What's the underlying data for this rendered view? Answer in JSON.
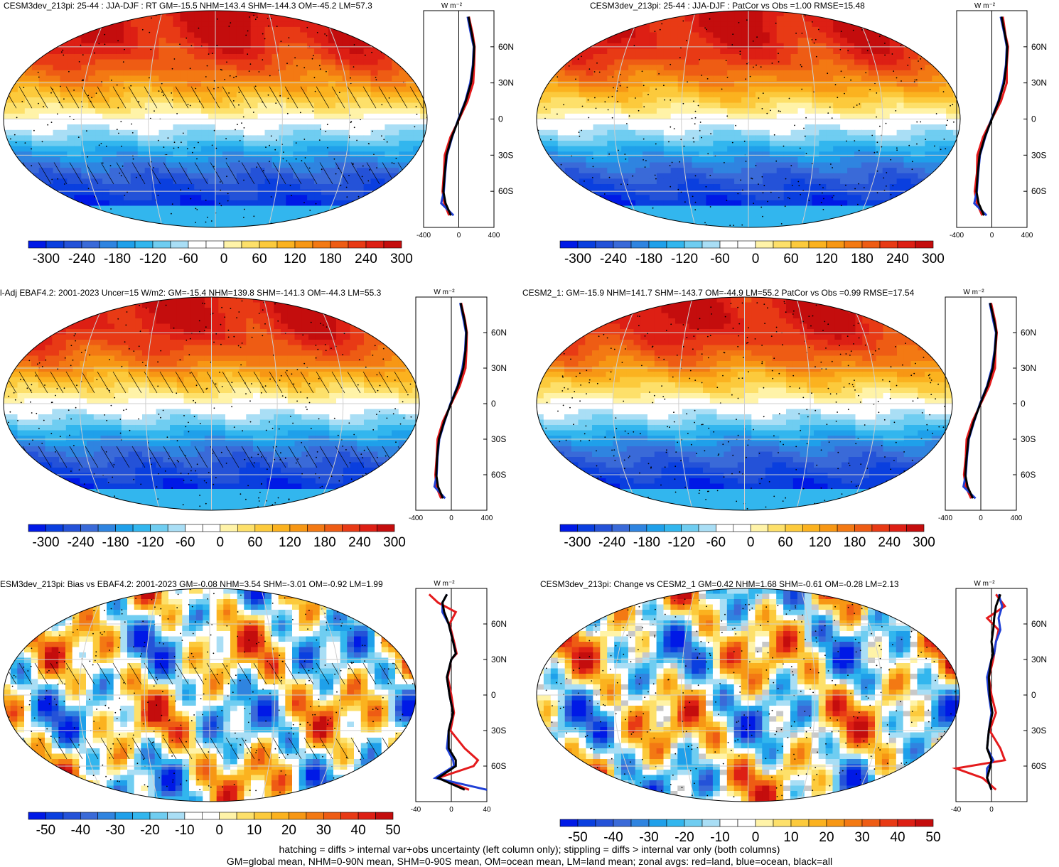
{
  "colors": {
    "ocean_land_line": "#000000",
    "grid_line": "#cfcfcf",
    "zonal_land": "#e41a1c",
    "zonal_ocean": "#1f3fd6",
    "zonal_all": "#000000",
    "missing": "#c8c8c8"
  },
  "palette": [
    "#0019e6",
    "#0a3fdf",
    "#2452d8",
    "#3a6ad8",
    "#2f84e0",
    "#1fa0ea",
    "#32b6ee",
    "#6fcdf1",
    "#a9def5",
    "#ffffff",
    "#ffffff",
    "#fff3a8",
    "#fde06a",
    "#fcca3c",
    "#fbb21f",
    "#f79714",
    "#f37913",
    "#ee5c14",
    "#e83a15",
    "#dd1f14",
    "#c40d0d"
  ],
  "panels": [
    {
      "title": "CESM3dev_213pi: 25-44 : JJA-DJF : RT GM=-15.5 NHM=143.4 SHM=-144.3 OM=-45.2 LM=57.3",
      "kind": "field",
      "hatching": true,
      "colorbar_labels": [
        "-300",
        "-240",
        "-180",
        "-120",
        "-60",
        "0",
        "60",
        "120",
        "180",
        "240",
        "300"
      ],
      "profile_ticks": [
        "-400",
        "0",
        "400"
      ],
      "lat_labels": [
        "60N",
        "30N",
        "0",
        "30S",
        "60S"
      ],
      "units": "W m⁻²"
    },
    {
      "title": "CESM3dev_213pi: 25-44 : JJA-DJF : PatCor vs Obs =1.00 RMSE=15.48",
      "kind": "field",
      "hatching": false,
      "colorbar_labels": [
        "-300",
        "-240",
        "-180",
        "-120",
        "-60",
        "0",
        "60",
        "120",
        "180",
        "240",
        "300"
      ],
      "profile_ticks": [
        "-400",
        "0",
        "400"
      ],
      "lat_labels": [
        "60N",
        "30N",
        "0",
        "30S",
        "60S"
      ],
      "units": "W m⁻²"
    },
    {
      "title": "l-Adj EBAF4.2: 2001-2023 Uncer=15 W/m2: GM=-15.4 NHM=139.8 SHM=-141.3 OM=-44.3 LM=55.3",
      "kind": "field",
      "hatching": true,
      "colorbar_labels": [
        "-300",
        "-240",
        "-180",
        "-120",
        "-60",
        "0",
        "60",
        "120",
        "180",
        "240",
        "300"
      ],
      "profile_ticks": [
        "-400",
        "0",
        "400"
      ],
      "lat_labels": [
        "60N",
        "30N",
        "0",
        "30S",
        "60S"
      ],
      "units": "W m⁻²"
    },
    {
      "title": "CESM2_1: GM=-15.9 NHM=141.7 SHM=-143.7 OM=-44.9 LM=55.2 PatCor vs Obs =0.99 RMSE=17.54",
      "kind": "field",
      "hatching": false,
      "colorbar_labels": [
        "-300",
        "-240",
        "-180",
        "-120",
        "-60",
        "0",
        "60",
        "120",
        "180",
        "240",
        "300"
      ],
      "profile_ticks": [
        "-400",
        "0",
        "400"
      ],
      "lat_labels": [
        "60N",
        "30N",
        "0",
        "30S",
        "60S"
      ],
      "units": "W m⁻²"
    },
    {
      "title": "ESM3dev_213pi: Bias vs EBAF4.2: 2001-2023 GM=-0.08 NHM=3.54 SHM=-3.01 OM=-0.92 LM=1.99",
      "kind": "diff",
      "hatching": true,
      "colorbar_labels": [
        "-50",
        "-40",
        "-30",
        "-20",
        "-10",
        "0",
        "10",
        "20",
        "30",
        "40",
        "50"
      ],
      "profile_ticks": [
        "-40",
        "0",
        "40"
      ],
      "lat_labels": [
        "60N",
        "30N",
        "0",
        "30S",
        "60S"
      ],
      "units": "W m⁻²"
    },
    {
      "title": "CESM3dev_213pi: Change vs CESM2_1 GM=0.42 NHM=1.68 SHM=-0.61 OM=-0.28 LM=2.13",
      "kind": "diff",
      "hatching": false,
      "colorbar_labels": [
        "-50",
        "-40",
        "-30",
        "-20",
        "-10",
        "0",
        "10",
        "20",
        "30",
        "40",
        "50"
      ],
      "profile_ticks": [
        "-40",
        "0"
      ],
      "lat_labels": [
        "60N",
        "30N",
        "0",
        "30S",
        "60S"
      ],
      "units": "W m⁻²"
    }
  ],
  "chart_data": [
    {
      "type": "heatmap",
      "title": "CESM3dev_213pi: 25-44 : JJA-DJF : RT GM=-15.5 NHM=143.4 SHM=-144.3 OM=-45.2 LM=57.3",
      "colorbar_range": [
        -300,
        300
      ],
      "zonal_profile": {
        "lat": [
          85,
          70,
          60,
          45,
          30,
          15,
          0,
          -15,
          -30,
          -45,
          -60,
          -70,
          -80
        ],
        "all": [
          110,
          150,
          175,
          165,
          140,
          80,
          0,
          -80,
          -140,
          -160,
          -175,
          -150,
          -90
        ],
        "land": [
          115,
          160,
          180,
          175,
          165,
          100,
          5,
          -95,
          -160,
          -170,
          -185,
          -165,
          -110
        ],
        "ocean": [
          100,
          140,
          170,
          160,
          130,
          75,
          -5,
          -75,
          -135,
          -155,
          -170,
          -200,
          -60
        ]
      },
      "profile_xlim": [
        -400,
        400
      ]
    },
    {
      "type": "heatmap",
      "title": "CESM3dev_213pi: 25-44 : JJA-DJF : PatCor vs Obs =1.00 RMSE=15.48",
      "colorbar_range": [
        -300,
        300
      ],
      "zonal_profile": {
        "lat": [
          85,
          70,
          60,
          45,
          30,
          15,
          0,
          -15,
          -30,
          -45,
          -60,
          -70,
          -80
        ],
        "all": [
          110,
          150,
          175,
          165,
          140,
          80,
          0,
          -80,
          -140,
          -160,
          -175,
          -150,
          -90
        ],
        "land": [
          125,
          155,
          185,
          170,
          170,
          105,
          0,
          -100,
          -165,
          -170,
          -195,
          -170,
          -110
        ],
        "ocean": [
          100,
          145,
          170,
          160,
          130,
          75,
          -5,
          -75,
          -135,
          -155,
          -170,
          -200,
          -60
        ]
      },
      "profile_xlim": [
        -400,
        400
      ]
    },
    {
      "type": "heatmap",
      "title": "l-Adj EBAF4.2: 2001-2023 Uncer=15 W/m2: GM=-15.4 NHM=139.8 SHM=-141.3 OM=-44.3 LM=55.3",
      "colorbar_range": [
        -300,
        300
      ],
      "zonal_profile": {
        "lat": [
          85,
          70,
          60,
          45,
          30,
          15,
          0,
          -15,
          -30,
          -45,
          -60,
          -70,
          -80
        ],
        "all": [
          105,
          150,
          170,
          160,
          135,
          75,
          -5,
          -80,
          -140,
          -160,
          -170,
          -150,
          -95
        ],
        "land": [
          110,
          155,
          175,
          170,
          160,
          95,
          0,
          -95,
          -155,
          -165,
          -180,
          -170,
          -115
        ],
        "ocean": [
          100,
          140,
          165,
          155,
          125,
          70,
          -10,
          -75,
          -135,
          -155,
          -165,
          -190,
          -70
        ]
      },
      "profile_xlim": [
        -400,
        400
      ]
    },
    {
      "type": "heatmap",
      "title": "CESM2_1: GM=-15.9 NHM=141.7 SHM=-143.7 OM=-44.9 LM=55.2 PatCor vs Obs =0.99 RMSE=17.54",
      "colorbar_range": [
        -300,
        300
      ],
      "zonal_profile": {
        "lat": [
          85,
          70,
          60,
          45,
          30,
          15,
          0,
          -15,
          -30,
          -45,
          -60,
          -70,
          -80
        ],
        "all": [
          105,
          150,
          175,
          160,
          135,
          75,
          -5,
          -80,
          -140,
          -160,
          -175,
          -150,
          -90
        ],
        "land": [
          115,
          160,
          180,
          165,
          160,
          95,
          0,
          -95,
          -160,
          -170,
          -190,
          -170,
          -110
        ],
        "ocean": [
          100,
          140,
          170,
          155,
          125,
          70,
          -10,
          -75,
          -135,
          -155,
          -170,
          -195,
          -60
        ]
      },
      "profile_xlim": [
        -400,
        400
      ]
    },
    {
      "type": "heatmap",
      "title": "ESM3dev_213pi: Bias vs EBAF4.2: 2001-2023 GM=-0.08 NHM=3.54 SHM=-3.01 OM=-0.92 LM=1.99",
      "colorbar_range": [
        -50,
        50
      ],
      "zonal_profile": {
        "lat": [
          85,
          78,
          70,
          60,
          45,
          35,
          30,
          15,
          0,
          -15,
          -30,
          -45,
          -55,
          -60,
          -70,
          -80
        ],
        "all": [
          -5,
          -10,
          -8,
          -3,
          2,
          5,
          0,
          -5,
          -2,
          2,
          -3,
          -3,
          5,
          5,
          -15,
          15
        ],
        "land": [
          -25,
          -15,
          5,
          -2,
          3,
          6,
          0,
          -4,
          0,
          3,
          -1,
          15,
          30,
          25,
          -15,
          20
        ],
        "ocean": [
          -5,
          -10,
          -10,
          -3,
          2,
          5,
          0,
          -5,
          -2,
          2,
          -3,
          -5,
          2,
          3,
          -18,
          45
        ]
      },
      "profile_xlim": [
        -40,
        40
      ]
    },
    {
      "type": "heatmap",
      "title": "CESM3dev_213pi: Change vs CESM2_1 GM=0.42 NHM=1.68 SHM=-0.61 OM=-0.28 LM=2.13",
      "colorbar_range": [
        -50,
        50
      ],
      "zonal_profile": {
        "lat": [
          85,
          75,
          65,
          55,
          45,
          35,
          30,
          15,
          0,
          -15,
          -30,
          -45,
          -55,
          -62,
          -70,
          -80
        ],
        "all": [
          10,
          5,
          3,
          2,
          0,
          2,
          0,
          -3,
          -2,
          1,
          -3,
          -5,
          0,
          -2,
          -5,
          0
        ],
        "land": [
          5,
          15,
          -5,
          8,
          5,
          3,
          2,
          -3,
          0,
          5,
          -2,
          10,
          15,
          -60,
          -10,
          5
        ],
        "ocean": [
          8,
          12,
          8,
          10,
          5,
          3,
          0,
          -5,
          -3,
          0,
          -3,
          -5,
          2,
          -5,
          -5,
          0
        ]
      },
      "profile_xlim": [
        -40,
        40
      ]
    }
  ],
  "footer": {
    "line1": "hatching = diffs > internal var+obs uncertainty (left column only); stippling = diffs > internal var only (both columns)",
    "line2": "GM=global mean, NHM=0-90N mean, SHM=0-90S mean, OM=ocean mean, LM=land mean; zonal avgs: red=land, blue=ocean, black=all"
  }
}
